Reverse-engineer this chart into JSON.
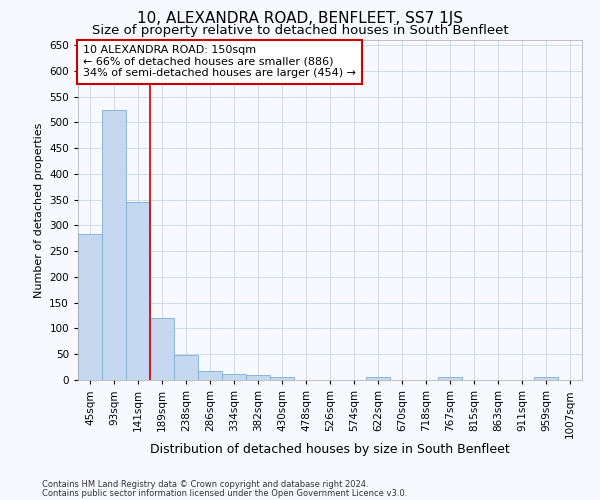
{
  "title": "10, ALEXANDRA ROAD, BENFLEET, SS7 1JS",
  "subtitle": "Size of property relative to detached houses in South Benfleet",
  "xlabel": "Distribution of detached houses by size in South Benfleet",
  "ylabel": "Number of detached properties",
  "categories": [
    "45sqm",
    "93sqm",
    "141sqm",
    "189sqm",
    "238sqm",
    "286sqm",
    "334sqm",
    "382sqm",
    "430sqm",
    "478sqm",
    "526sqm",
    "574sqm",
    "622sqm",
    "670sqm",
    "718sqm",
    "767sqm",
    "815sqm",
    "863sqm",
    "911sqm",
    "959sqm",
    "1007sqm"
  ],
  "values": [
    283,
    525,
    345,
    120,
    48,
    18,
    11,
    9,
    5,
    0,
    0,
    0,
    5,
    0,
    0,
    5,
    0,
    0,
    0,
    5,
    0
  ],
  "bar_color": "#c5d8ef",
  "bar_edge_color": "#7aafd4",
  "grid_color": "#d0dce8",
  "bg_color": "#f8f8ff",
  "red_line_x": 2.5,
  "annotation_title": "10 ALEXANDRA ROAD: 150sqm",
  "annotation_line1": "← 66% of detached houses are smaller (886)",
  "annotation_line2": "34% of semi-detached houses are larger (454) →",
  "ylim": [
    0,
    660
  ],
  "yticks": [
    0,
    50,
    100,
    150,
    200,
    250,
    300,
    350,
    400,
    450,
    500,
    550,
    600,
    650
  ],
  "footer1": "Contains HM Land Registry data © Crown copyright and database right 2024.",
  "footer2": "Contains public sector information licensed under the Open Government Licence v3.0.",
  "annotation_box_color": "#cc0000",
  "title_fontsize": 11,
  "subtitle_fontsize": 9.5,
  "tick_fontsize": 7.5,
  "xlabel_fontsize": 9,
  "ylabel_fontsize": 8,
  "annotation_fontsize": 8,
  "footer_fontsize": 6
}
